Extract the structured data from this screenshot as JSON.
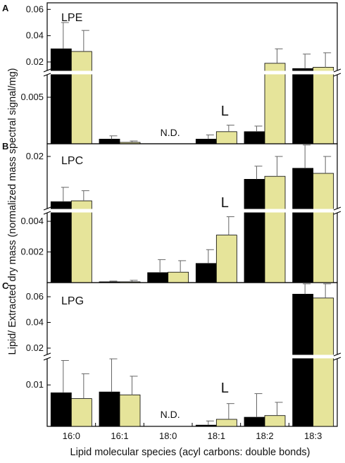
{
  "figure": {
    "ylabel": "Lipid/ Extracted dry mass (normalized mass spectral signal/mg)",
    "xlabel": "Lipid molecular species (acyl carbons: double bonds)",
    "categories": [
      "16:0",
      "16:1",
      "18:0",
      "18:1",
      "18:2",
      "18:3"
    ],
    "colors": {
      "series1": "#000000",
      "series2": "#e6e49a"
    }
  },
  "chart_data": [
    {
      "type": "bar",
      "panel": "A",
      "name": "LPE",
      "categories": [
        "16:0",
        "16:1",
        "18:0",
        "18:1",
        "18:2",
        "18:3"
      ],
      "series": [
        {
          "values": [
            0.03,
            0.0005,
            null,
            0.0005,
            0.0013,
            0.015
          ],
          "errors": [
            0.02,
            0.00035,
            null,
            0.00045,
            0.0006,
            0.011
          ]
        },
        {
          "values": [
            0.028,
            0.00015,
            null,
            0.0013,
            0.019,
            0.016
          ],
          "errors": [
            0.016,
            0.00015,
            null,
            0.0007,
            0.011,
            0.011
          ]
        }
      ],
      "yaxis": {
        "lower": [
          0,
          0.0075
        ],
        "upper": [
          0.013,
          0.065
        ],
        "lower_ticks": [
          "0.005"
        ],
        "upper_ticks": [
          "0.02",
          "0.04",
          "0.06"
        ]
      },
      "annotations": {
        "nd": "N.D.",
        "nd_category": "18:0",
        "mark": "L",
        "mark_category": "18:1"
      }
    },
    {
      "type": "bar",
      "panel": "B",
      "name": "LPC",
      "categories": [
        "16:0",
        "16:1",
        "18:0",
        "18:1",
        "18:2",
        "18:3"
      ],
      "series": [
        {
          "values": [
            0.0093,
            5e-05,
            0.00065,
            0.00125,
            0.0146,
            0.0172
          ],
          "errors": [
            0.0034,
            5e-05,
            0.00085,
            0.0009,
            0.0031,
            0.0055
          ]
        },
        {
          "values": [
            0.0095,
            5e-05,
            0.00068,
            0.0031,
            0.0153,
            0.016
          ],
          "errors": [
            0.0024,
            0.0001,
            0.00075,
            0.0012,
            0.0047,
            0.004
          ]
        }
      ],
      "yaxis": {
        "lower": [
          0,
          0.0046
        ],
        "upper": [
          0.0075,
          0.023
        ],
        "lower_ticks": [
          "0.002",
          "0.004"
        ],
        "upper_ticks": [
          "0.02"
        ]
      },
      "annotations": {
        "mark": "L",
        "mark_category": "18:1"
      }
    },
    {
      "type": "bar",
      "panel": "C",
      "name": "LPG",
      "categories": [
        "16:0",
        "16:1",
        "18:0",
        "18:1",
        "18:2",
        "18:3"
      ],
      "series": [
        {
          "values": [
            0.0081,
            0.0083,
            null,
            0.0003,
            0.0022,
            0.062
          ],
          "errors": [
            0.0078,
            0.008,
            null,
            0.001,
            0.0057,
            0.008
          ]
        },
        {
          "values": [
            0.0067,
            0.0076,
            null,
            0.0017,
            0.0026,
            0.059
          ],
          "errors": [
            0.006,
            0.0045,
            null,
            0.0038,
            0.0032,
            0.011
          ]
        }
      ],
      "yaxis": {
        "lower": [
          0,
          0.0165
        ],
        "upper": [
          0.0145,
          0.071
        ],
        "lower_ticks": [
          "0.01"
        ],
        "upper_ticks": [
          "0.02",
          "0.04",
          "0.06"
        ]
      },
      "annotations": {
        "nd": "N.D.",
        "nd_category": "18:0",
        "mark": "L",
        "mark_category": "18:1"
      }
    }
  ]
}
